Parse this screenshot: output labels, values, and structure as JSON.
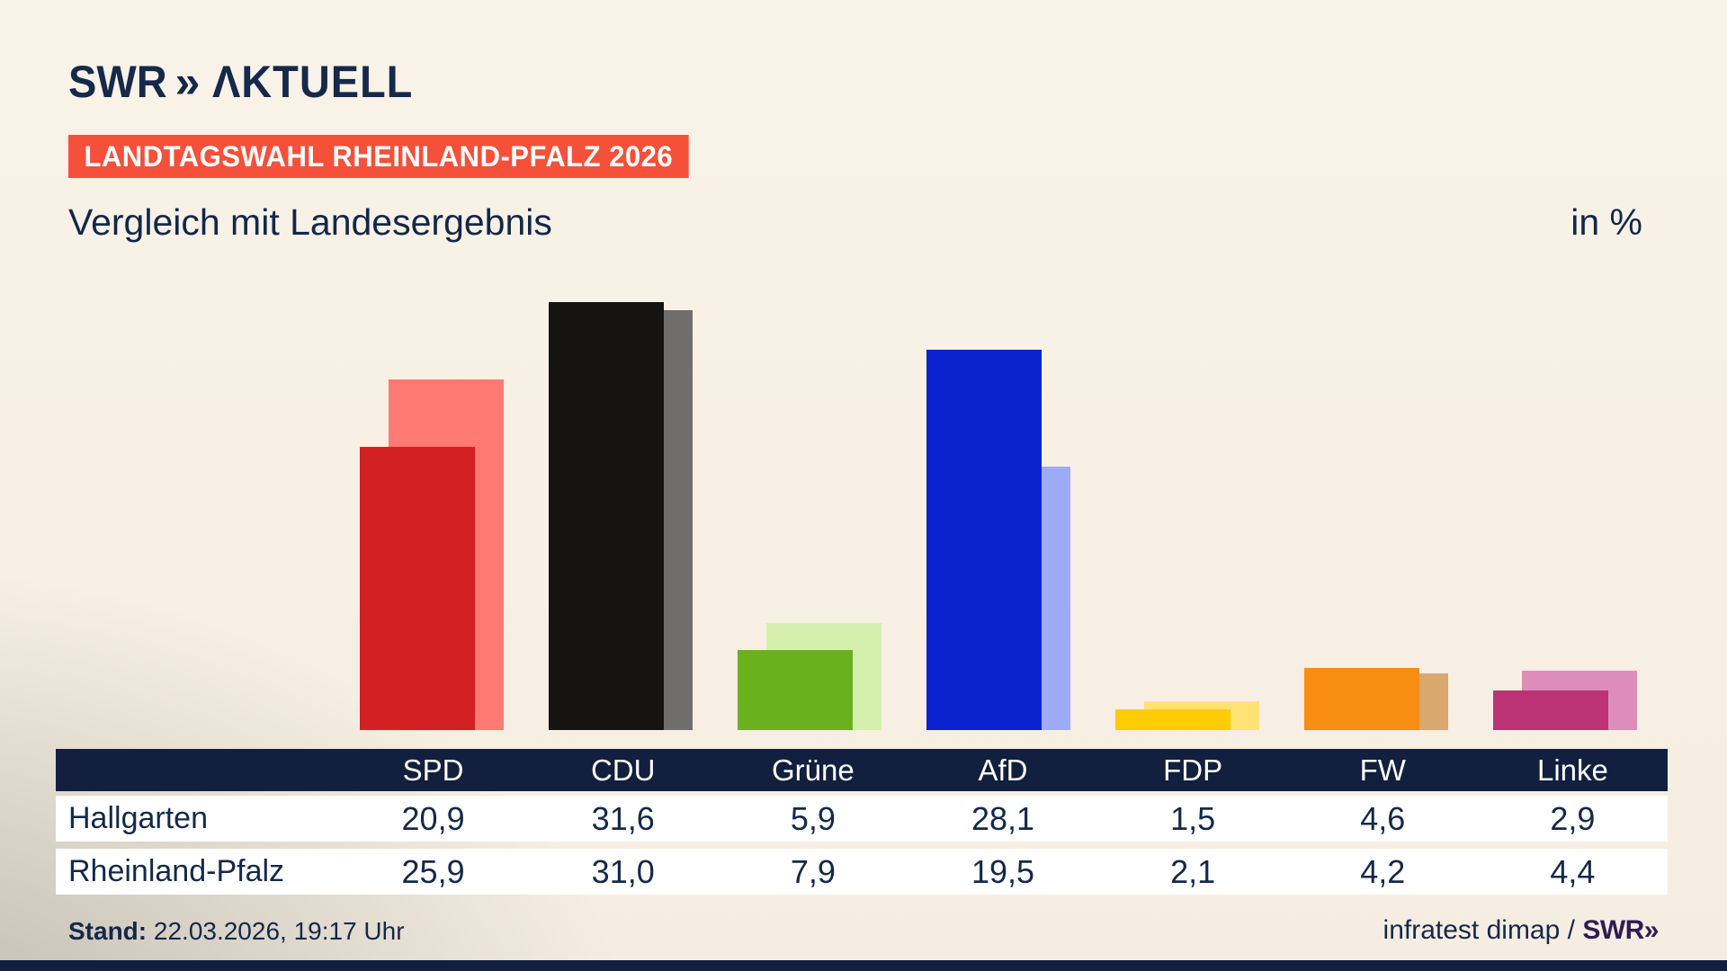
{
  "brand": {
    "logo_swr": "SWR",
    "logo_chevrons": "»",
    "logo_suffix": "ΛKTUELL"
  },
  "header": {
    "badge": "LANDTAGSWAHL RHEINLAND-PFALZ 2026",
    "subtitle": "Vergleich mit Landesergebnis",
    "unit_label": "in %"
  },
  "chart_data": {
    "type": "bar",
    "title": "Vergleich mit Landesergebnis",
    "unit": "%",
    "categories": [
      "SPD",
      "CDU",
      "Grüne",
      "AfD",
      "FDP",
      "FW",
      "Linke"
    ],
    "series": [
      {
        "name": "Hallgarten",
        "values": [
          20.9,
          31.6,
          5.9,
          28.1,
          1.5,
          4.6,
          2.9
        ],
        "labels": [
          "20,9",
          "31,6",
          "5,9",
          "28,1",
          "1,5",
          "4,6",
          "2,9"
        ]
      },
      {
        "name": "Rheinland-Pfalz",
        "values": [
          25.9,
          31.0,
          7.9,
          19.5,
          2.1,
          4.2,
          4.4
        ],
        "labels": [
          "25,9",
          "31,0",
          "7,9",
          "19,5",
          "2,1",
          "4,2",
          "4,4"
        ]
      }
    ],
    "bar_colors_front": [
      "#d32023",
      "#161412",
      "#6ab120",
      "#0b22cf",
      "#ffcc06",
      "#f98d13",
      "#bb3375"
    ],
    "bar_colors_back": [
      "#ff7a73",
      "#706e6d",
      "#d5f0ad",
      "#9dabf7",
      "#ffe273",
      "#d9a86e",
      "#de8cba"
    ],
    "ylim": [
      0,
      38
    ],
    "grid": false,
    "legend_position": "table-below"
  },
  "footer": {
    "stand_label": "Stand:",
    "stand_value": " 22.03.2026, 19:17 Uhr",
    "source_prefix": "infratest dimap / ",
    "source_brand": "SWR»"
  },
  "colors": {
    "navy_text": "#13294a",
    "table_header_bg": "#121f3e",
    "badge_bg": "#f4503a",
    "badge_text": "#ffffff",
    "row_bg": "#ffffff",
    "background": "#f8f0e4",
    "background_shade": "#d8d4cd",
    "source_brand_color": "#321b52",
    "bottom_bar": "#121f3e"
  }
}
